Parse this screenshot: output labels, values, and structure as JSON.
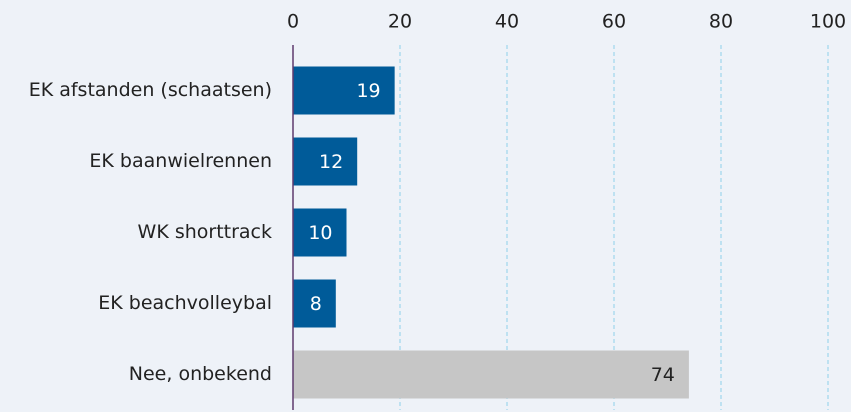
{
  "chart_data": {
    "type": "bar",
    "orientation": "horizontal",
    "categories": [
      "EK afstanden (schaatsen)",
      "EK baanwielrennen",
      "WK shorttrack",
      "EK beachvolleybal",
      "Nee, onbekend"
    ],
    "values": [
      19,
      12,
      10,
      8,
      74
    ],
    "colors": [
      "#005b99",
      "#005b99",
      "#005b99",
      "#005b99",
      "#c6c6c6"
    ],
    "xlim": [
      0,
      100
    ],
    "xticks": [
      0,
      20,
      40,
      60,
      80,
      100
    ],
    "grid": true
  }
}
